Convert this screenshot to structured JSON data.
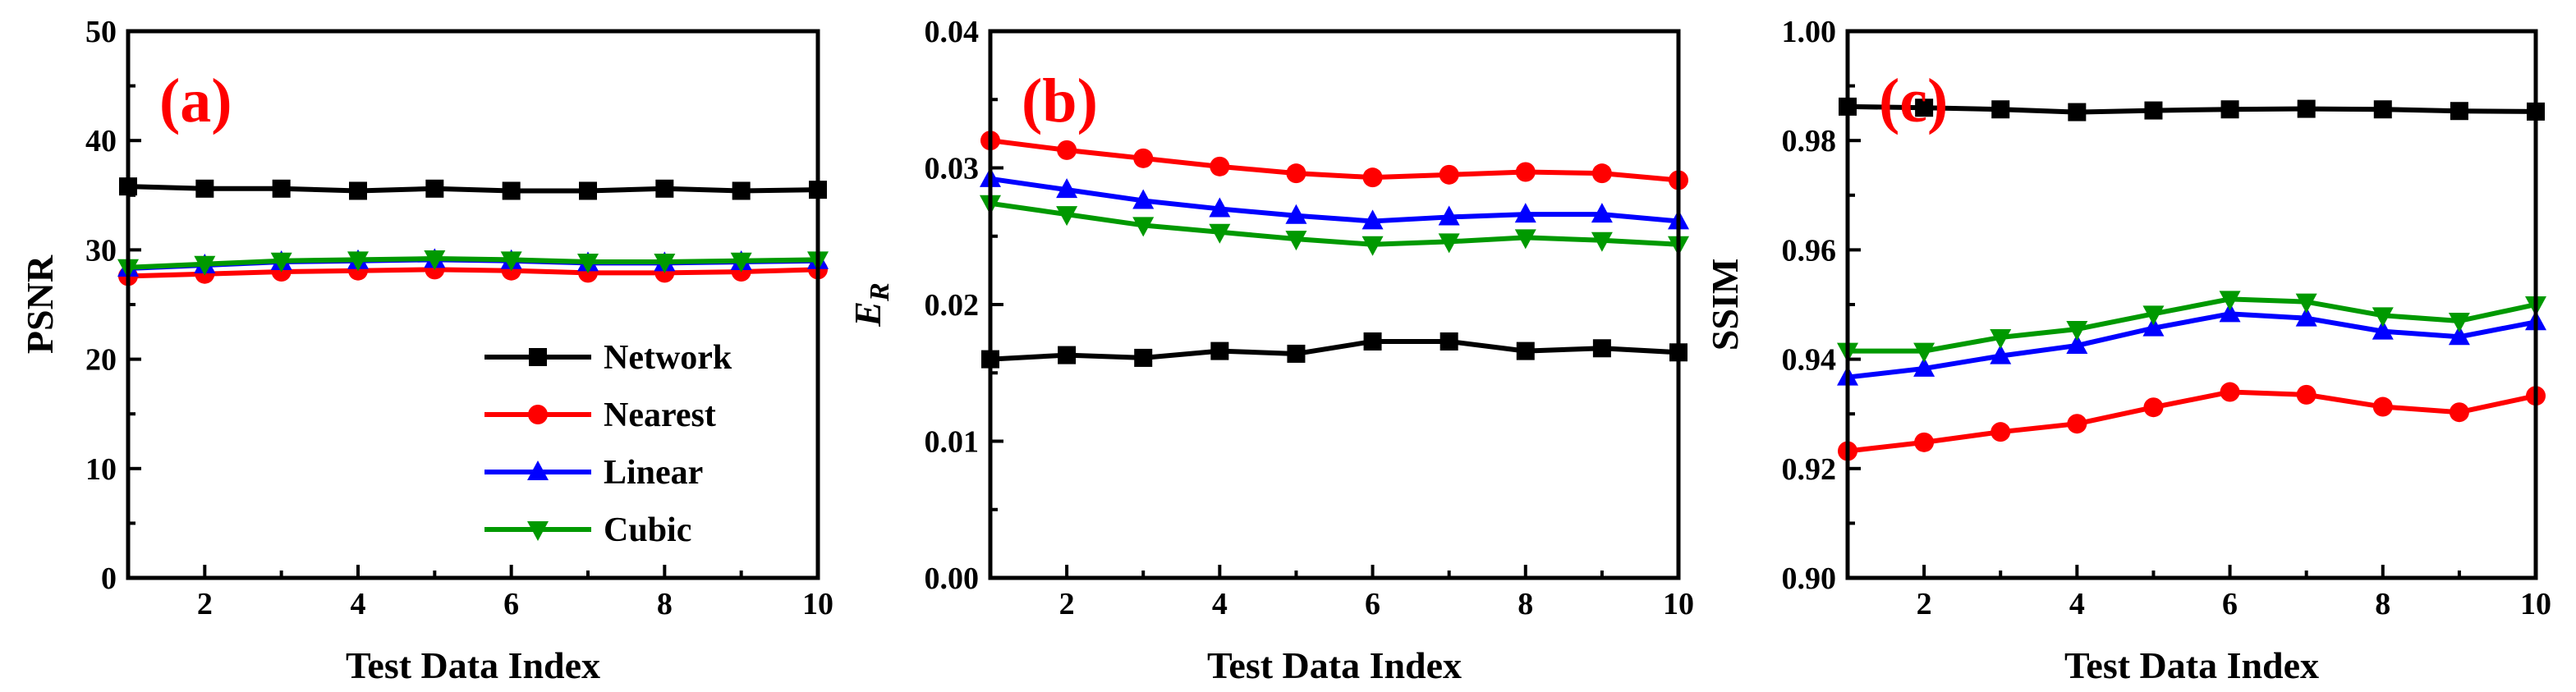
{
  "colors": {
    "Network": "#000000",
    "Nearest": "#ff0000",
    "Linear": "#0000ff",
    "Cubic": "#009900"
  },
  "markers": {
    "Network": "square",
    "Nearest": "circle",
    "Linear": "triangle-up",
    "Cubic": "triangle-down"
  },
  "chart_data": [
    {
      "type": "line",
      "panel_label": "(a)",
      "xlabel": "Test Data Index",
      "ylabel": "PSNR",
      "xlim": [
        1,
        10
      ],
      "ylim": [
        0,
        50
      ],
      "xticks": [
        2,
        4,
        6,
        8,
        10
      ],
      "yticks": [
        0,
        10,
        20,
        30,
        40,
        50
      ],
      "ytick_labels": [
        "0",
        "10",
        "20",
        "30",
        "40",
        "50"
      ],
      "x": [
        1,
        2,
        3,
        4,
        5,
        6,
        7,
        8,
        9,
        10
      ],
      "legend": "bottom-right",
      "series": [
        {
          "name": "Network",
          "values": [
            35.8,
            35.6,
            35.6,
            35.4,
            35.6,
            35.4,
            35.4,
            35.6,
            35.4,
            35.5
          ]
        },
        {
          "name": "Nearest",
          "values": [
            27.6,
            27.8,
            28.0,
            28.1,
            28.2,
            28.1,
            27.9,
            27.9,
            28.0,
            28.2
          ]
        },
        {
          "name": "Linear",
          "values": [
            28.3,
            28.6,
            28.9,
            29.0,
            29.1,
            29.0,
            28.8,
            28.8,
            28.9,
            29.0
          ]
        },
        {
          "name": "Cubic",
          "values": [
            28.4,
            28.7,
            29.0,
            29.1,
            29.2,
            29.1,
            28.9,
            28.9,
            29.0,
            29.1
          ]
        }
      ]
    },
    {
      "type": "line",
      "panel_label": "(b)",
      "xlabel": "Test Data Index",
      "ylabel": "E",
      "ylabel_sub": "R",
      "xlim": [
        1,
        10
      ],
      "ylim": [
        0,
        0.04
      ],
      "xticks": [
        2,
        4,
        6,
        8,
        10
      ],
      "yticks": [
        0,
        0.01,
        0.02,
        0.03,
        0.04
      ],
      "ytick_labels": [
        "0.00",
        "0.01",
        "0.02",
        "0.03",
        "0.04"
      ],
      "x": [
        1,
        2,
        3,
        4,
        5,
        6,
        7,
        8,
        9,
        10
      ],
      "series": [
        {
          "name": "Network",
          "values": [
            0.016,
            0.0163,
            0.0161,
            0.0166,
            0.0164,
            0.0173,
            0.0173,
            0.0166,
            0.0168,
            0.0165
          ]
        },
        {
          "name": "Nearest",
          "values": [
            0.032,
            0.0313,
            0.0307,
            0.0301,
            0.0296,
            0.0293,
            0.0295,
            0.0297,
            0.0296,
            0.0291
          ]
        },
        {
          "name": "Linear",
          "values": [
            0.0292,
            0.0284,
            0.0276,
            0.027,
            0.0265,
            0.0261,
            0.0264,
            0.0266,
            0.0266,
            0.0261
          ]
        },
        {
          "name": "Cubic",
          "values": [
            0.0274,
            0.0266,
            0.0258,
            0.0253,
            0.0248,
            0.0244,
            0.0246,
            0.0249,
            0.0247,
            0.0244
          ]
        }
      ]
    },
    {
      "type": "line",
      "panel_label": "(c)",
      "xlabel": "Test Data Index",
      "ylabel": "SSIM",
      "xlim": [
        1,
        10
      ],
      "ylim": [
        0.9,
        1.0
      ],
      "xticks": [
        2,
        4,
        6,
        8,
        10
      ],
      "yticks": [
        0.9,
        0.92,
        0.94,
        0.96,
        0.98,
        1.0
      ],
      "ytick_labels": [
        "0.90",
        "0.92",
        "0.94",
        "0.96",
        "0.98",
        "1.00"
      ],
      "x": [
        1,
        2,
        3,
        4,
        5,
        6,
        7,
        8,
        9,
        10
      ],
      "series": [
        {
          "name": "Network",
          "values": [
            0.9862,
            0.986,
            0.9857,
            0.9852,
            0.9855,
            0.9857,
            0.9858,
            0.9857,
            0.9854,
            0.9853
          ]
        },
        {
          "name": "Nearest",
          "values": [
            0.9232,
            0.9248,
            0.9267,
            0.9282,
            0.9312,
            0.934,
            0.9335,
            0.9313,
            0.9303,
            0.9333
          ]
        },
        {
          "name": "Linear",
          "values": [
            0.9367,
            0.9383,
            0.9406,
            0.9425,
            0.9457,
            0.9483,
            0.9475,
            0.9451,
            0.9441,
            0.9468
          ]
        },
        {
          "name": "Cubic",
          "values": [
            0.9415,
            0.9415,
            0.944,
            0.9455,
            0.9483,
            0.951,
            0.9505,
            0.948,
            0.947,
            0.95
          ]
        }
      ]
    }
  ]
}
